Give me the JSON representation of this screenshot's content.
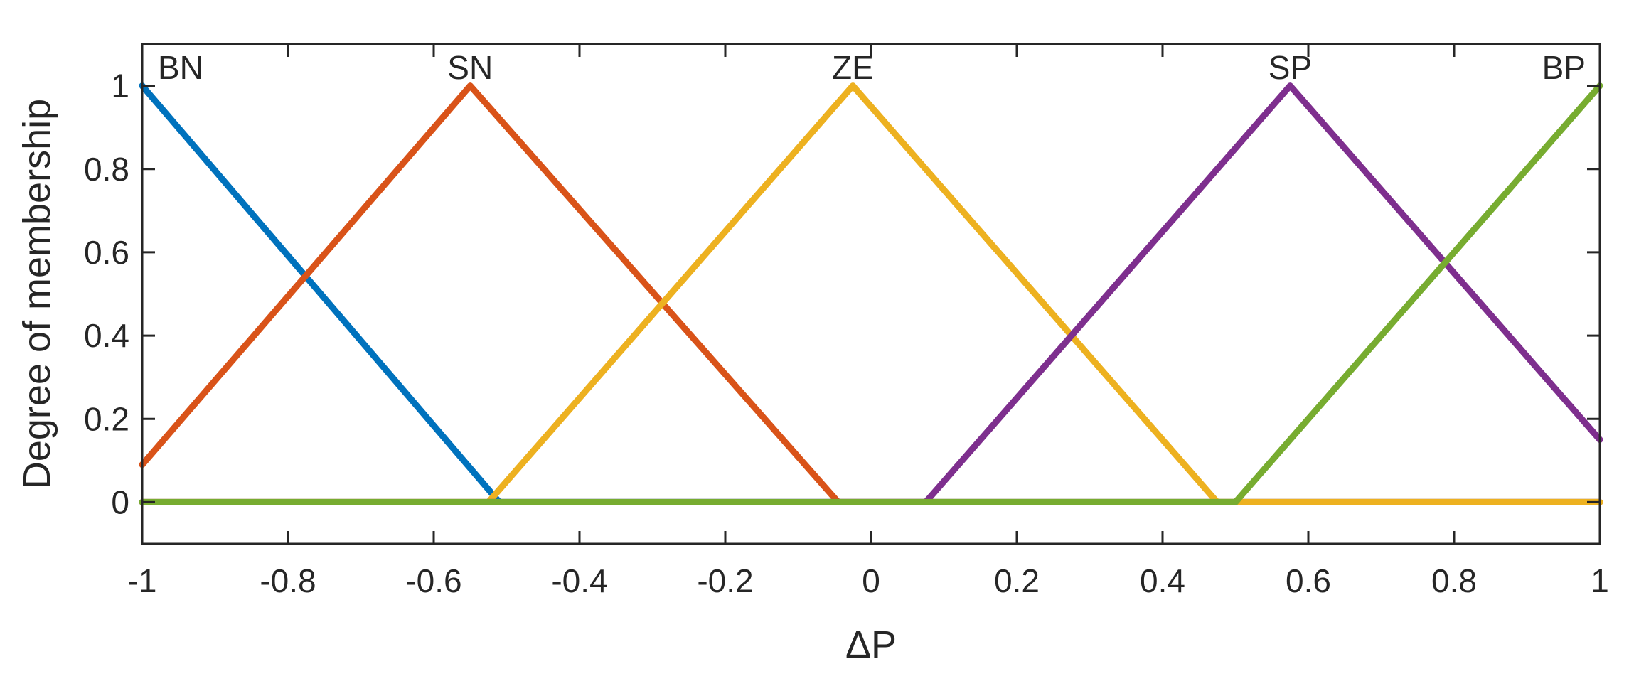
{
  "chart_data": {
    "type": "line",
    "xlabel": "ΔP",
    "ylabel": "Degree of membership",
    "xlim": [
      -1,
      1
    ],
    "ylim": [
      -0.1,
      1.1
    ],
    "xticks": [
      -1,
      -0.8,
      -0.6,
      -0.4,
      -0.2,
      0,
      0.2,
      0.4,
      0.6,
      0.8,
      1
    ],
    "xtick_labels": [
      "-1",
      "-0.8",
      "-0.6",
      "-0.4",
      "-0.2",
      "0",
      "0.2",
      "0.4",
      "0.6",
      "0.8",
      "1"
    ],
    "yticks": [
      0,
      0.2,
      0.4,
      0.6,
      0.8,
      1
    ],
    "ytick_labels": [
      "0",
      "0.2",
      "0.4",
      "0.6",
      "0.8",
      "1"
    ],
    "grid": false,
    "series": [
      {
        "name": "BN",
        "color": "#0072BD",
        "points": [
          [
            -1,
            1
          ],
          [
            -0.51,
            0
          ],
          [
            1,
            0
          ]
        ],
        "label_at": [
          -0.97,
          1.03
        ]
      },
      {
        "name": "SN",
        "color": "#D95319",
        "points": [
          [
            -1,
            0.09
          ],
          [
            -0.55,
            1
          ],
          [
            -0.045,
            0
          ],
          [
            1,
            0
          ]
        ],
        "label_at": [
          -0.55,
          1.03
        ]
      },
      {
        "name": "ZE",
        "color": "#EDB120",
        "points": [
          [
            -1,
            0
          ],
          [
            -0.525,
            0
          ],
          [
            -0.025,
            1
          ],
          [
            0.475,
            0
          ],
          [
            1,
            0
          ]
        ],
        "label_at": [
          -0.025,
          1.03
        ]
      },
      {
        "name": "SP",
        "color": "#7E2F8E",
        "points": [
          [
            -1,
            0
          ],
          [
            0.075,
            0
          ],
          [
            0.575,
            1
          ],
          [
            1,
            0.15
          ]
        ],
        "label_at": [
          0.575,
          1.03
        ]
      },
      {
        "name": "BP",
        "color": "#77AC30",
        "points": [
          [
            -1,
            0
          ],
          [
            0.5,
            0
          ],
          [
            1,
            1
          ]
        ],
        "label_at": [
          0.97,
          1.03
        ]
      }
    ]
  }
}
